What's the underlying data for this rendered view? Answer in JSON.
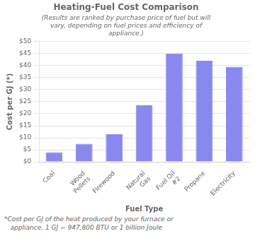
{
  "chart_data": {
    "type": "bar",
    "title": "Heating-Fuel Cost Comparison",
    "subtitle": "(Results are ranked by purchase price of fuel but will\nvary, depending on fuel prices and efficiency of\nappliance.)",
    "xlabel": "Fuel Type",
    "ylabel": "Cost per GJ (*)",
    "footnote": "*Cost per GJ of the heat produced by your furnace or\n   appliance. 1 GJ = 947,800 BTU or 1 billion Joule",
    "categories": [
      "Coal",
      "Wood\nPellets",
      "Firewood",
      "Natural\nGas",
      "Fuel Oil\n#2",
      "Propane",
      "Electricity"
    ],
    "values": [
      4.0,
      7.5,
      11.5,
      23.5,
      45.0,
      42.0,
      39.5
    ],
    "color": "#8888EE",
    "ylim": [
      0,
      50
    ],
    "yticks": [
      {
        "value": 0,
        "label": "$0"
      },
      {
        "value": 5,
        "label": "$5"
      },
      {
        "value": 10,
        "label": "$10"
      },
      {
        "value": 15,
        "label": "$15"
      },
      {
        "value": 20,
        "label": "$20"
      },
      {
        "value": 25,
        "label": "$25"
      },
      {
        "value": 30,
        "label": "$30"
      },
      {
        "value": 35,
        "label": "$35"
      },
      {
        "value": 40,
        "label": "$40"
      },
      {
        "value": 45,
        "label": "$45"
      },
      {
        "value": 50,
        "label": "$50"
      }
    ],
    "grid": true
  }
}
